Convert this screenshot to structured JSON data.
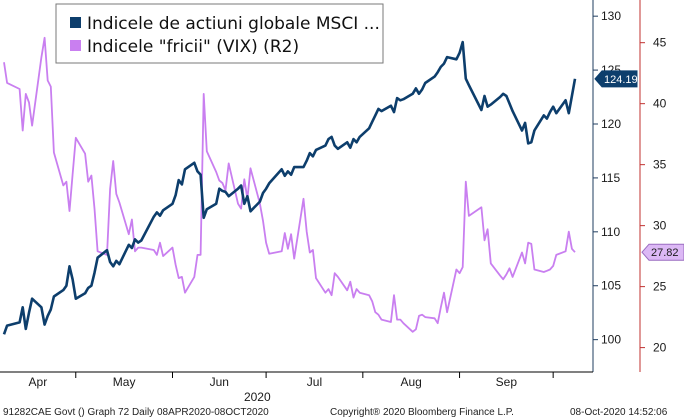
{
  "chart_data": {
    "type": "line",
    "x_range": [
      "2020-04-08",
      "2020-10-08"
    ],
    "month_labels": [
      "Apr",
      "May",
      "Jun",
      "Jul",
      "Aug",
      "Sep"
    ],
    "month_starts": [
      "2020-04-01",
      "2020-05-01",
      "2020-06-01",
      "2020-07-01",
      "2020-08-01",
      "2020-09-01",
      "2020-10-01"
    ],
    "year_label": "2020",
    "y_left": {
      "ticks": [
        100,
        105,
        110,
        115,
        120,
        125,
        130
      ],
      "range": [
        97,
        131.5
      ],
      "color": "#1f3c5f"
    },
    "y_right": {
      "ticks": [
        20,
        25,
        30,
        35,
        40,
        45
      ],
      "range": [
        18,
        48.5
      ],
      "color": "#c0302f"
    },
    "grid": false,
    "legend_position": "top-left",
    "series": [
      {
        "name": "Indicele de actiuni globale MSCI ...",
        "axis": "left",
        "color": "#0d3e6c",
        "last_value_label": "124.19",
        "points": [
          [
            "2020-04-08",
            100.5
          ],
          [
            "2020-04-09",
            101.3
          ],
          [
            "2020-04-13",
            101.6
          ],
          [
            "2020-04-14",
            103.0
          ],
          [
            "2020-04-15",
            101.0
          ],
          [
            "2020-04-16",
            102.5
          ],
          [
            "2020-04-17",
            103.8
          ],
          [
            "2020-04-20",
            103.0
          ],
          [
            "2020-04-21",
            101.4
          ],
          [
            "2020-04-22",
            102.2
          ],
          [
            "2020-04-23",
            102.8
          ],
          [
            "2020-04-24",
            104.0
          ],
          [
            "2020-04-27",
            104.6
          ],
          [
            "2020-04-28",
            105.0
          ],
          [
            "2020-04-29",
            106.8
          ],
          [
            "2020-04-30",
            105.6
          ],
          [
            "2020-05-01",
            103.8
          ],
          [
            "2020-05-04",
            104.3
          ],
          [
            "2020-05-05",
            104.8
          ],
          [
            "2020-05-06",
            105.0
          ],
          [
            "2020-05-07",
            106.2
          ],
          [
            "2020-05-08",
            107.6
          ],
          [
            "2020-05-11",
            108.3
          ],
          [
            "2020-05-12",
            107.2
          ],
          [
            "2020-05-13",
            106.8
          ],
          [
            "2020-05-14",
            107.3
          ],
          [
            "2020-05-15",
            107.0
          ],
          [
            "2020-05-18",
            108.8
          ],
          [
            "2020-05-19",
            108.5
          ],
          [
            "2020-05-20",
            109.3
          ],
          [
            "2020-05-21",
            109.0
          ],
          [
            "2020-05-22",
            109.2
          ],
          [
            "2020-05-26",
            111.4
          ],
          [
            "2020-05-27",
            111.8
          ],
          [
            "2020-05-28",
            111.5
          ],
          [
            "2020-05-29",
            112.0
          ],
          [
            "2020-06-01",
            112.6
          ],
          [
            "2020-06-02",
            113.4
          ],
          [
            "2020-06-03",
            114.8
          ],
          [
            "2020-06-04",
            114.4
          ],
          [
            "2020-06-05",
            115.8
          ],
          [
            "2020-06-08",
            116.4
          ],
          [
            "2020-06-09",
            115.6
          ],
          [
            "2020-06-10",
            115.3
          ],
          [
            "2020-06-11",
            111.3
          ],
          [
            "2020-06-12",
            112.1
          ],
          [
            "2020-06-15",
            112.6
          ],
          [
            "2020-06-16",
            114.0
          ],
          [
            "2020-06-17",
            113.8
          ],
          [
            "2020-06-18",
            113.7
          ],
          [
            "2020-06-19",
            113.3
          ],
          [
            "2020-06-22",
            114.0
          ],
          [
            "2020-06-23",
            114.3
          ],
          [
            "2020-06-24",
            112.6
          ],
          [
            "2020-06-25",
            113.3
          ],
          [
            "2020-06-26",
            111.9
          ],
          [
            "2020-06-29",
            112.8
          ],
          [
            "2020-06-30",
            113.6
          ],
          [
            "2020-07-01",
            114.0
          ],
          [
            "2020-07-02",
            114.5
          ],
          [
            "2020-07-06",
            115.8
          ],
          [
            "2020-07-07",
            115.2
          ],
          [
            "2020-07-08",
            115.6
          ],
          [
            "2020-07-09",
            115.3
          ],
          [
            "2020-07-10",
            116.0
          ],
          [
            "2020-07-13",
            116.0
          ],
          [
            "2020-07-14",
            116.6
          ],
          [
            "2020-07-15",
            117.3
          ],
          [
            "2020-07-16",
            117.0
          ],
          [
            "2020-07-17",
            117.6
          ],
          [
            "2020-07-20",
            118.0
          ],
          [
            "2020-07-21",
            118.6
          ],
          [
            "2020-07-22",
            118.8
          ],
          [
            "2020-07-23",
            118.0
          ],
          [
            "2020-07-24",
            117.7
          ],
          [
            "2020-07-27",
            118.3
          ],
          [
            "2020-07-28",
            117.8
          ],
          [
            "2020-07-29",
            118.6
          ],
          [
            "2020-07-30",
            118.3
          ],
          [
            "2020-07-31",
            118.8
          ],
          [
            "2020-08-03",
            119.6
          ],
          [
            "2020-08-04",
            120.2
          ],
          [
            "2020-08-05",
            120.8
          ],
          [
            "2020-08-06",
            121.4
          ],
          [
            "2020-08-07",
            121.2
          ],
          [
            "2020-08-10",
            121.7
          ],
          [
            "2020-08-11",
            121.1
          ],
          [
            "2020-08-12",
            122.4
          ],
          [
            "2020-08-13",
            122.2
          ],
          [
            "2020-08-14",
            122.3
          ],
          [
            "2020-08-17",
            122.8
          ],
          [
            "2020-08-18",
            123.3
          ],
          [
            "2020-08-19",
            122.8
          ],
          [
            "2020-08-20",
            123.2
          ],
          [
            "2020-08-21",
            123.8
          ],
          [
            "2020-08-24",
            124.4
          ],
          [
            "2020-08-25",
            124.8
          ],
          [
            "2020-08-26",
            125.3
          ],
          [
            "2020-08-27",
            125.6
          ],
          [
            "2020-08-28",
            126.2
          ],
          [
            "2020-08-31",
            126.0
          ],
          [
            "2020-09-01",
            126.6
          ],
          [
            "2020-09-02",
            127.6
          ],
          [
            "2020-09-03",
            124.2
          ],
          [
            "2020-09-04",
            123.6
          ],
          [
            "2020-09-08",
            121.3
          ],
          [
            "2020-09-09",
            122.6
          ],
          [
            "2020-09-10",
            121.6
          ],
          [
            "2020-09-11",
            121.8
          ],
          [
            "2020-09-14",
            122.5
          ],
          [
            "2020-09-15",
            122.8
          ],
          [
            "2020-09-16",
            122.6
          ],
          [
            "2020-09-17",
            121.9
          ],
          [
            "2020-09-18",
            121.2
          ],
          [
            "2020-09-21",
            119.4
          ],
          [
            "2020-09-22",
            120.1
          ],
          [
            "2020-09-23",
            118.2
          ],
          [
            "2020-09-24",
            118.3
          ],
          [
            "2020-09-25",
            119.4
          ],
          [
            "2020-09-28",
            120.8
          ],
          [
            "2020-09-29",
            120.5
          ],
          [
            "2020-09-30",
            121.1
          ],
          [
            "2020-10-01",
            121.6
          ],
          [
            "2020-10-02",
            121.0
          ],
          [
            "2020-10-05",
            122.2
          ],
          [
            "2020-10-06",
            121.0
          ],
          [
            "2020-10-07",
            122.6
          ],
          [
            "2020-10-08",
            124.19
          ]
        ]
      },
      {
        "name": "Indicele \"fricii\" (VIX) (R2)",
        "axis": "right",
        "color": "#c97ff0",
        "last_value_label": "27.82",
        "points": [
          [
            "2020-04-08",
            43.4
          ],
          [
            "2020-04-09",
            41.7
          ],
          [
            "2020-04-13",
            41.2
          ],
          [
            "2020-04-14",
            37.8
          ],
          [
            "2020-04-15",
            40.8
          ],
          [
            "2020-04-16",
            40.1
          ],
          [
            "2020-04-17",
            38.2
          ],
          [
            "2020-04-20",
            43.8
          ],
          [
            "2020-04-21",
            45.4
          ],
          [
            "2020-04-22",
            41.9
          ],
          [
            "2020-04-23",
            41.4
          ],
          [
            "2020-04-24",
            36.0
          ],
          [
            "2020-04-27",
            33.3
          ],
          [
            "2020-04-28",
            33.6
          ],
          [
            "2020-04-29",
            31.2
          ],
          [
            "2020-04-30",
            34.2
          ],
          [
            "2020-05-01",
            37.2
          ],
          [
            "2020-05-04",
            35.9
          ],
          [
            "2020-05-05",
            33.6
          ],
          [
            "2020-05-06",
            34.1
          ],
          [
            "2020-05-07",
            31.4
          ],
          [
            "2020-05-08",
            27.9
          ],
          [
            "2020-05-11",
            27.6
          ],
          [
            "2020-05-12",
            33.0
          ],
          [
            "2020-05-13",
            35.3
          ],
          [
            "2020-05-14",
            32.6
          ],
          [
            "2020-05-15",
            31.9
          ],
          [
            "2020-05-18",
            29.3
          ],
          [
            "2020-05-19",
            30.5
          ],
          [
            "2020-05-20",
            27.9
          ],
          [
            "2020-05-21",
            28.2
          ],
          [
            "2020-05-22",
            28.2
          ],
          [
            "2020-05-26",
            28.0
          ],
          [
            "2020-05-27",
            27.6
          ],
          [
            "2020-05-28",
            28.6
          ],
          [
            "2020-05-29",
            27.5
          ],
          [
            "2020-06-01",
            28.2
          ],
          [
            "2020-06-02",
            26.8
          ],
          [
            "2020-06-03",
            25.7
          ],
          [
            "2020-06-04",
            25.8
          ],
          [
            "2020-06-05",
            24.5
          ],
          [
            "2020-06-08",
            25.8
          ],
          [
            "2020-06-09",
            27.6
          ],
          [
            "2020-06-10",
            27.6
          ],
          [
            "2020-06-11",
            40.8
          ],
          [
            "2020-06-12",
            36.1
          ],
          [
            "2020-06-15",
            34.4
          ],
          [
            "2020-06-16",
            33.7
          ],
          [
            "2020-06-17",
            33.5
          ],
          [
            "2020-06-18",
            32.9
          ],
          [
            "2020-06-19",
            35.1
          ],
          [
            "2020-06-22",
            31.8
          ],
          [
            "2020-06-23",
            31.4
          ],
          [
            "2020-06-24",
            33.8
          ],
          [
            "2020-06-25",
            32.2
          ],
          [
            "2020-06-26",
            34.7
          ],
          [
            "2020-06-29",
            31.8
          ],
          [
            "2020-06-30",
            30.4
          ],
          [
            "2020-07-01",
            28.6
          ],
          [
            "2020-07-02",
            27.7
          ],
          [
            "2020-07-06",
            27.9
          ],
          [
            "2020-07-07",
            29.4
          ],
          [
            "2020-07-08",
            28.1
          ],
          [
            "2020-07-09",
            29.3
          ],
          [
            "2020-07-10",
            27.3
          ],
          [
            "2020-07-13",
            32.2
          ],
          [
            "2020-07-14",
            29.5
          ],
          [
            "2020-07-15",
            27.8
          ],
          [
            "2020-07-16",
            28.0
          ],
          [
            "2020-07-17",
            25.7
          ],
          [
            "2020-07-20",
            24.5
          ],
          [
            "2020-07-21",
            24.8
          ],
          [
            "2020-07-22",
            24.3
          ],
          [
            "2020-07-23",
            26.1
          ],
          [
            "2020-07-24",
            25.8
          ],
          [
            "2020-07-27",
            24.7
          ],
          [
            "2020-07-28",
            25.4
          ],
          [
            "2020-07-29",
            24.1
          ],
          [
            "2020-07-30",
            24.8
          ],
          [
            "2020-07-31",
            24.5
          ],
          [
            "2020-08-03",
            24.3
          ],
          [
            "2020-08-04",
            23.8
          ],
          [
            "2020-08-05",
            22.9
          ],
          [
            "2020-08-06",
            22.7
          ],
          [
            "2020-08-07",
            22.3
          ],
          [
            "2020-08-10",
            22.1
          ],
          [
            "2020-08-11",
            24.3
          ],
          [
            "2020-08-12",
            22.3
          ],
          [
            "2020-08-13",
            22.3
          ],
          [
            "2020-08-14",
            22.0
          ],
          [
            "2020-08-17",
            21.3
          ],
          [
            "2020-08-18",
            21.5
          ],
          [
            "2020-08-19",
            22.6
          ],
          [
            "2020-08-20",
            22.7
          ],
          [
            "2020-08-21",
            22.5
          ],
          [
            "2020-08-24",
            22.4
          ],
          [
            "2020-08-25",
            22.0
          ],
          [
            "2020-08-26",
            23.3
          ],
          [
            "2020-08-27",
            24.5
          ],
          [
            "2020-08-28",
            22.9
          ],
          [
            "2020-08-31",
            26.4
          ],
          [
            "2020-09-01",
            26.1
          ],
          [
            "2020-09-02",
            26.6
          ],
          [
            "2020-09-03",
            33.6
          ],
          [
            "2020-09-04",
            30.8
          ],
          [
            "2020-09-08",
            31.5
          ],
          [
            "2020-09-09",
            28.8
          ],
          [
            "2020-09-10",
            29.7
          ],
          [
            "2020-09-11",
            26.9
          ],
          [
            "2020-09-14",
            25.9
          ],
          [
            "2020-09-15",
            25.6
          ],
          [
            "2020-09-16",
            26.0
          ],
          [
            "2020-09-17",
            26.5
          ],
          [
            "2020-09-18",
            25.8
          ],
          [
            "2020-09-21",
            27.8
          ],
          [
            "2020-09-22",
            26.9
          ],
          [
            "2020-09-23",
            28.6
          ],
          [
            "2020-09-24",
            28.5
          ],
          [
            "2020-09-25",
            26.4
          ],
          [
            "2020-09-28",
            26.2
          ],
          [
            "2020-09-29",
            26.3
          ],
          [
            "2020-09-30",
            26.4
          ],
          [
            "2020-10-01",
            26.7
          ],
          [
            "2020-10-02",
            27.6
          ],
          [
            "2020-10-05",
            27.9
          ],
          [
            "2020-10-06",
            29.5
          ],
          [
            "2020-10-07",
            28.1
          ],
          [
            "2020-10-08",
            27.82
          ]
        ]
      }
    ]
  },
  "footer": {
    "left": "91282CAE Govt () Graph 72  Daily 08APR2020-08OCT2020",
    "center": "Copyright® 2020 Bloomberg Finance L.P.",
    "right": "08-Oct-2020 14:52:06"
  }
}
